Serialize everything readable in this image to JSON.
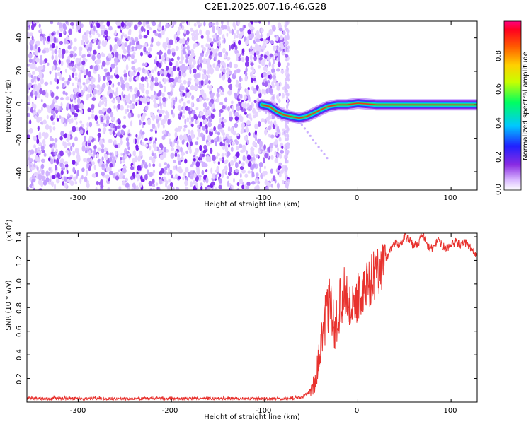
{
  "title": "C2E1.2025.007.16.46.G28",
  "colors": {
    "trace": "#e8322e",
    "axis": "#000000",
    "plot_bg": "#ffffff"
  },
  "chart_data": [
    {
      "type": "heatmap",
      "xlabel": "Height of straight line (km)",
      "ylabel": "Frequency (Hz)",
      "xlim": [
        -355,
        128
      ],
      "ylim": [
        -51,
        50
      ],
      "xticks": [
        "-300",
        "-200",
        "-100",
        "0",
        "100"
      ],
      "yticks": [
        "-40",
        "-20",
        "0",
        "20",
        "40"
      ],
      "colorbar": {
        "label": "Normalized spectral amplitude",
        "range": [
          0.0,
          1.0
        ],
        "ticks": [
          "0.0",
          "0.2",
          "0.4",
          "0.6",
          "0.8"
        ]
      },
      "noise_region_km": [
        -355,
        -75
      ],
      "signal_track": [
        {
          "x": -103,
          "y": 0
        },
        {
          "x": -95,
          "y": -1
        },
        {
          "x": -87,
          "y": -4
        },
        {
          "x": -80,
          "y": -6
        },
        {
          "x": -72,
          "y": -7
        },
        {
          "x": -63,
          "y": -8
        },
        {
          "x": -55,
          "y": -7
        },
        {
          "x": -47,
          "y": -5
        },
        {
          "x": -40,
          "y": -3
        },
        {
          "x": -32,
          "y": -1
        },
        {
          "x": -22,
          "y": 0
        },
        {
          "x": -12,
          "y": 0
        },
        {
          "x": 0,
          "y": 1
        },
        {
          "x": 20,
          "y": 0
        },
        {
          "x": 60,
          "y": 0
        },
        {
          "x": 100,
          "y": 0
        },
        {
          "x": 128,
          "y": 0
        }
      ]
    },
    {
      "type": "line",
      "xlabel": "Height of straight line (km)",
      "ylabel": "SNR (10 * v/v)",
      "yscale_label": "(x10",
      "yscale_exp": "4",
      "yscale_close": ")",
      "xlim": [
        -355,
        128
      ],
      "ylim": [
        0.0,
        1.43
      ],
      "xticks": [
        "-300",
        "-200",
        "-100",
        "0",
        "100"
      ],
      "yticks": [
        "0.2",
        "0.4",
        "0.6",
        "0.8",
        "1.0",
        "1.2",
        "1.4"
      ],
      "series": [
        {
          "values_unit": "x10^4",
          "points": [
            {
              "x": -355,
              "y": 0.03
            },
            {
              "x": -300,
              "y": 0.03
            },
            {
              "x": -250,
              "y": 0.03
            },
            {
              "x": -200,
              "y": 0.03
            },
            {
              "x": -150,
              "y": 0.03
            },
            {
              "x": -100,
              "y": 0.03
            },
            {
              "x": -70,
              "y": 0.03
            },
            {
              "x": -60,
              "y": 0.04
            },
            {
              "x": -50,
              "y": 0.1
            },
            {
              "x": -45,
              "y": 0.2
            },
            {
              "x": -40,
              "y": 0.45
            },
            {
              "x": -35,
              "y": 0.7
            },
            {
              "x": -30,
              "y": 0.85
            },
            {
              "x": -25,
              "y": 0.6
            },
            {
              "x": -20,
              "y": 0.8
            },
            {
              "x": -15,
              "y": 0.95
            },
            {
              "x": -10,
              "y": 0.85
            },
            {
              "x": -5,
              "y": 0.75
            },
            {
              "x": 0,
              "y": 0.9
            },
            {
              "x": 5,
              "y": 0.9
            },
            {
              "x": 10,
              "y": 1.0
            },
            {
              "x": 15,
              "y": 1.05
            },
            {
              "x": 20,
              "y": 1.1
            },
            {
              "x": 25,
              "y": 1.15
            },
            {
              "x": 30,
              "y": 1.2
            },
            {
              "x": 35,
              "y": 1.3
            },
            {
              "x": 40,
              "y": 1.35
            },
            {
              "x": 45,
              "y": 1.33
            },
            {
              "x": 50,
              "y": 1.4
            },
            {
              "x": 55,
              "y": 1.38
            },
            {
              "x": 60,
              "y": 1.32
            },
            {
              "x": 65,
              "y": 1.35
            },
            {
              "x": 70,
              "y": 1.42
            },
            {
              "x": 75,
              "y": 1.32
            },
            {
              "x": 80,
              "y": 1.3
            },
            {
              "x": 85,
              "y": 1.37
            },
            {
              "x": 90,
              "y": 1.33
            },
            {
              "x": 95,
              "y": 1.3
            },
            {
              "x": 100,
              "y": 1.33
            },
            {
              "x": 105,
              "y": 1.36
            },
            {
              "x": 110,
              "y": 1.33
            },
            {
              "x": 115,
              "y": 1.35
            },
            {
              "x": 120,
              "y": 1.32
            },
            {
              "x": 125,
              "y": 1.25
            },
            {
              "x": 128,
              "y": 1.28
            }
          ]
        }
      ]
    }
  ]
}
